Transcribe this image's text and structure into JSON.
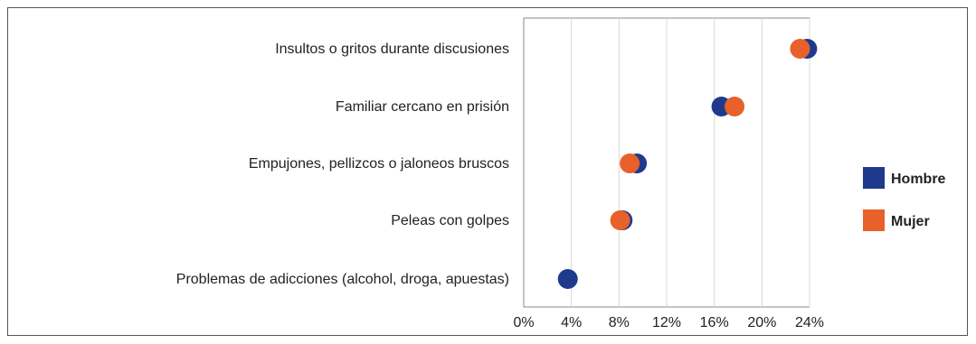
{
  "chart_data": {
    "type": "scatter",
    "orientation": "horizontal-dot-plot",
    "categories": [
      "Insultos o gritos durante discusiones",
      "Familiar cercano en prisión",
      "Empujones, pellizcos o jaloneos bruscos",
      "Peleas con golpes",
      "Problemas de adicciones (alcohol, droga, apuestas)"
    ],
    "series": [
      {
        "name": "Hombre",
        "color": "#1f3a8c",
        "values": [
          23.8,
          16.6,
          9.5,
          8.3,
          3.7
        ]
      },
      {
        "name": "Mujer",
        "color": "#e8602a",
        "values": [
          23.2,
          17.7,
          8.9,
          8.1,
          null
        ]
      }
    ],
    "xticks": [
      "0%",
      "4%",
      "8%",
      "12%",
      "16%",
      "20%",
      "24%"
    ],
    "xlim": [
      0,
      24
    ],
    "grid": "vertical",
    "legend_position": "right"
  }
}
